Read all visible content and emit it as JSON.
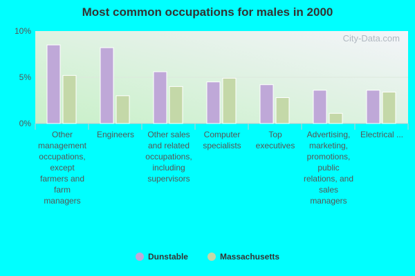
{
  "chart_data": {
    "type": "bar",
    "title": "Most common occupations for males in 2000",
    "categories": [
      "Other management occupations, except farmers and farm managers",
      "Engineers",
      "Other sales and related occupations, including supervisors",
      "Computer specialists",
      "Top executives",
      "Advertising, marketing, promotions, public relations, and sales managers",
      "Electrical ..."
    ],
    "series": [
      {
        "name": "Dunstable",
        "color": "#bfa8d8",
        "values": [
          8.5,
          8.2,
          5.6,
          4.5,
          4.2,
          3.6,
          3.6
        ]
      },
      {
        "name": "Massachusetts",
        "color": "#c4d8a8",
        "values": [
          5.2,
          3.0,
          4.0,
          4.9,
          2.8,
          1.1,
          3.4
        ]
      }
    ],
    "ylim": [
      0,
      10
    ],
    "yticks": [
      "0%",
      "5%",
      "10%"
    ],
    "grid": true,
    "legend": "bottom",
    "watermark": "City-Data.com"
  }
}
